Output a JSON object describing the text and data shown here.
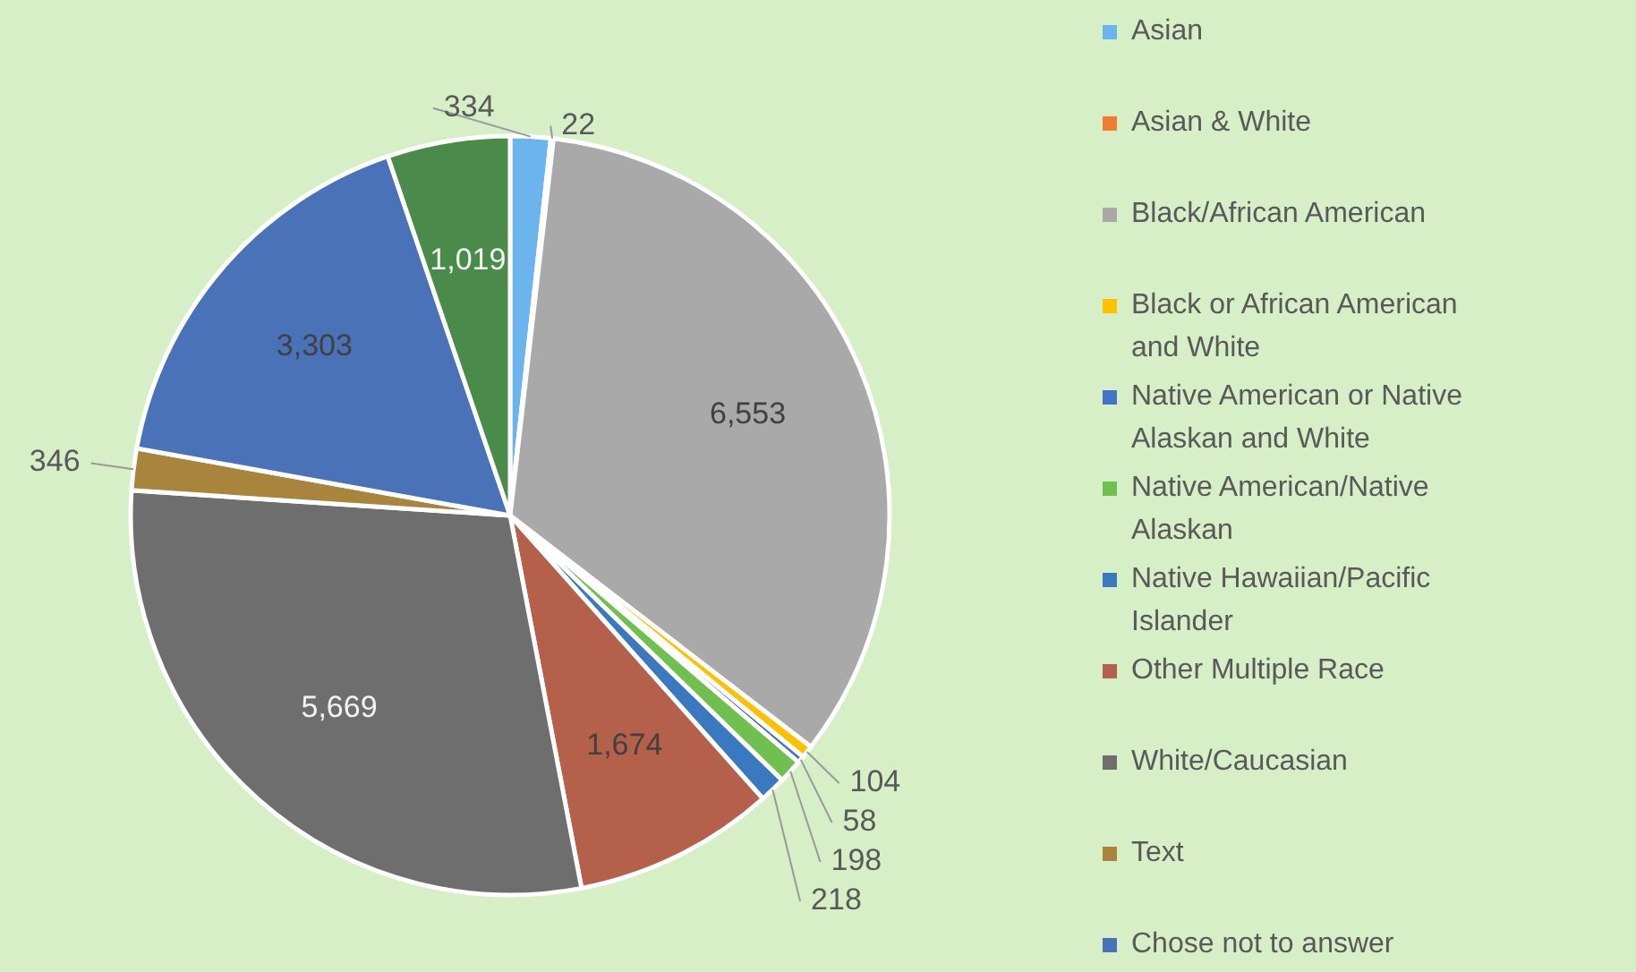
{
  "chart_data": {
    "type": "pie",
    "categories": [
      "Asian",
      "Asian & White",
      "Black/African American",
      "Black or African American and White",
      "Native American or Native Alaskan and White",
      "Native American/Native Alaskan",
      "Native Hawaiian/Pacific Islander",
      "Other Multiple Race",
      "White/Caucasian",
      "Text",
      "Chose not to answer",
      null
    ],
    "values": [
      334,
      22,
      6553,
      104,
      58,
      198,
      218,
      1674,
      5669,
      346,
      3303,
      1019
    ],
    "colors": [
      "#6cb4ee",
      "#ed7d31",
      "#a9a9a9",
      "#ffc000",
      "#4472c4",
      "#70c050",
      "#3a78c0",
      "#b5604a",
      "#6e6e6e",
      "#a8843c",
      "#4a72b8",
      "#4a8a4a"
    ],
    "value_labels": [
      "334",
      "22",
      "6,553",
      "104",
      "58",
      "198",
      "218",
      "1,674",
      "5,669",
      "346",
      "3,303",
      "1,019"
    ],
    "legend": "right"
  }
}
